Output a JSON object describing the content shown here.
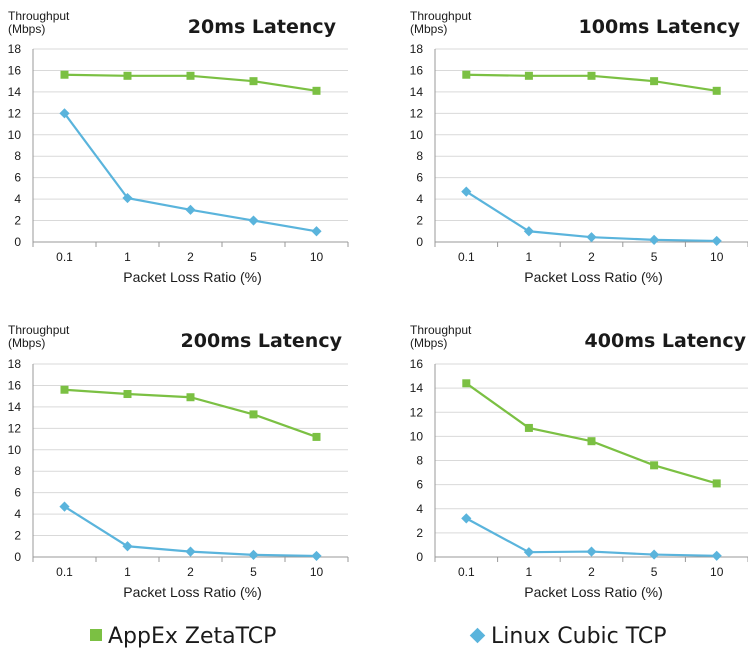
{
  "colors": {
    "zeta": "#7bc043",
    "cubic": "#5ab4dc",
    "axis": "#999999",
    "grid": "#d9d9d9"
  },
  "legend": {
    "zeta_label": "AppEx ZetaTCP",
    "cubic_label": "Linux Cubic TCP"
  },
  "chart_data": [
    {
      "type": "line",
      "title": "20ms Latency",
      "ylabel": "Throughput (Mbps)",
      "xlabel": "Packet Loss Ratio (%)",
      "categories": [
        "0.1",
        "1",
        "2",
        "5",
        "10"
      ],
      "ylim": [
        0,
        18
      ],
      "yticks": [
        0,
        2,
        4,
        6,
        8,
        10,
        12,
        14,
        16,
        18
      ],
      "grid": true,
      "series": [
        {
          "name": "AppEx ZetaTCP",
          "marker": "square",
          "values": [
            15.6,
            15.5,
            15.5,
            15.0,
            14.1
          ]
        },
        {
          "name": "Linux Cubic TCP",
          "marker": "diamond",
          "values": [
            12.0,
            4.1,
            3.0,
            2.0,
            1.0
          ]
        }
      ]
    },
    {
      "type": "line",
      "title": "100ms Latency",
      "ylabel": "Throughput (Mbps)",
      "xlabel": "Packet Loss Ratio (%)",
      "categories": [
        "0.1",
        "1",
        "2",
        "5",
        "10"
      ],
      "ylim": [
        0,
        18
      ],
      "yticks": [
        0,
        2,
        4,
        6,
        8,
        10,
        12,
        14,
        16,
        18
      ],
      "grid": true,
      "series": [
        {
          "name": "AppEx ZetaTCP",
          "marker": "square",
          "values": [
            15.6,
            15.5,
            15.5,
            15.0,
            14.1
          ]
        },
        {
          "name": "Linux Cubic TCP",
          "marker": "diamond",
          "values": [
            4.7,
            1.0,
            0.45,
            0.2,
            0.1
          ]
        }
      ]
    },
    {
      "type": "line",
      "title": "200ms Latency",
      "ylabel": "Throughput (Mbps)",
      "xlabel": "Packet Loss Ratio (%)",
      "categories": [
        "0.1",
        "1",
        "2",
        "5",
        "10"
      ],
      "ylim": [
        0,
        18
      ],
      "yticks": [
        0,
        2,
        4,
        6,
        8,
        10,
        12,
        14,
        16,
        18
      ],
      "grid": true,
      "series": [
        {
          "name": "AppEx ZetaTCP",
          "marker": "square",
          "values": [
            15.6,
            15.2,
            14.9,
            13.3,
            11.2
          ]
        },
        {
          "name": "Linux Cubic TCP",
          "marker": "diamond",
          "values": [
            4.7,
            1.0,
            0.5,
            0.2,
            0.1
          ]
        }
      ]
    },
    {
      "type": "line",
      "title": "400ms Latency",
      "ylabel": "Throughput (Mbps)",
      "xlabel": "Packet Loss Ratio (%)",
      "categories": [
        "0.1",
        "1",
        "2",
        "5",
        "10"
      ],
      "ylim": [
        0,
        16
      ],
      "yticks": [
        0,
        2,
        4,
        6,
        8,
        10,
        12,
        14,
        16
      ],
      "grid": true,
      "series": [
        {
          "name": "AppEx ZetaTCP",
          "marker": "square",
          "values": [
            14.4,
            10.7,
            9.6,
            7.6,
            6.1
          ]
        },
        {
          "name": "Linux Cubic TCP",
          "marker": "diamond",
          "values": [
            3.2,
            0.4,
            0.45,
            0.2,
            0.1
          ]
        }
      ]
    }
  ]
}
